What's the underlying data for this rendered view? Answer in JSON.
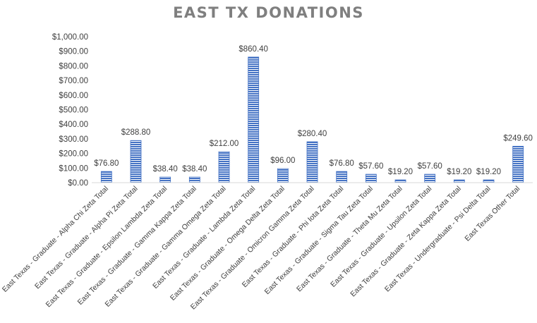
{
  "chart_data": {
    "type": "bar",
    "title": "EAST TX DONATIONS",
    "xlabel": "",
    "ylabel": "",
    "ylim": [
      0,
      1000
    ],
    "yticks": [
      "$0.00",
      "$100.00",
      "$200.00",
      "$300.00",
      "$400.00",
      "$500.00",
      "$600.00",
      "$700.00",
      "$800.00",
      "$900.00",
      "$1,000.00"
    ],
    "grid": false,
    "legend": "none",
    "bar_color": "#4472c4",
    "categories": [
      "East Texas - Graduate - Alpha Chi Zeta Total",
      "East Texas - Graduate - Alpha Pi Zeta Total",
      "East Texas - Graduate - Epsilon Lambda Zeta Total",
      "East Texas - Graduate - Gamma Kappa Zeta Total",
      "East Texas - Graduate - Gamma Omega Zeta Total",
      "East Texas - Graduate - Lambda Zeta Total",
      "East Texas - Graduate - Omega Delta Zeta Total",
      "East Texas - Graduate - Omicron Gamma Zeta Total",
      "East Texas - Graduate - Phi Iota Zeta Total",
      "East Texas - Graduate - Sigma Tau Zeta Total",
      "East Texas - Graduate - Theta Mu Zeta Total",
      "East Texas - Graduate - Upsilon Zeta Total",
      "East Texas - Graduate - Zeta Kappa Zeta Total",
      "East Texas - Undergraduate - Psi Delta Total",
      "East Texas Other Total"
    ],
    "values": [
      76.8,
      288.8,
      38.4,
      38.4,
      212.0,
      860.4,
      96.0,
      280.4,
      76.8,
      57.6,
      19.2,
      57.6,
      19.2,
      19.2,
      249.6
    ],
    "data_labels": [
      "$76.80",
      "$288.80",
      "$38.40",
      "$38.40",
      "$212.00",
      "$860.40",
      "$96.00",
      "$280.40",
      "$76.80",
      "$57.60",
      "$19.20",
      "$57.60",
      "$19.20",
      "$19.20",
      "$249.60"
    ]
  }
}
